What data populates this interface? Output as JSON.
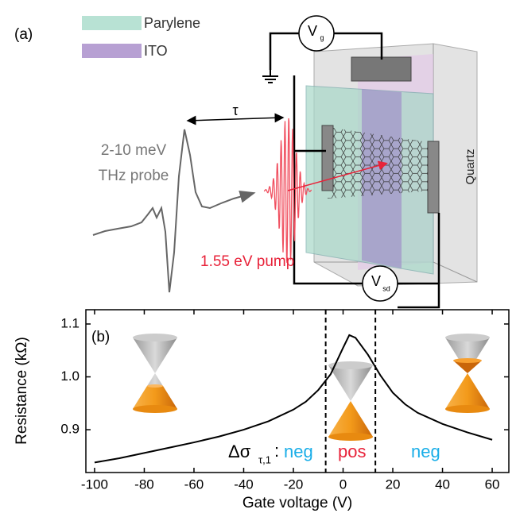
{
  "panel_a": {
    "label": "(a)",
    "legend": [
      "Parylene",
      "ITO"
    ],
    "legend_colors": [
      "#b8e2d4",
      "#b7a0d3"
    ],
    "gate_symbol": "V",
    "gate_sub": "g",
    "sd_symbol": "V",
    "sd_sub": "sd",
    "delay": "τ",
    "probe": [
      "2-10 meV",
      "THz probe"
    ],
    "pump": "1.55 eV pump",
    "substrate": "Quartz"
  },
  "chart_data": {
    "type": "line",
    "panel_label": "(b)",
    "x_label": "Gate voltage (V)",
    "y_label": "Resistance (kΩ)",
    "x": [
      -100,
      -90,
      -80,
      -70,
      -60,
      -50,
      -40,
      -30,
      -20,
      -15,
      -10,
      -5,
      0,
      2.5,
      5,
      10,
      15,
      20,
      25,
      30,
      40,
      50,
      60
    ],
    "series": [
      {
        "color": "#000000",
        "values": [
          0.838,
          0.846,
          0.856,
          0.866,
          0.876,
          0.887,
          0.9,
          0.916,
          0.938,
          0.953,
          0.975,
          1.005,
          1.055,
          1.079,
          1.074,
          1.042,
          1.003,
          0.97,
          0.948,
          0.932,
          0.911,
          0.895,
          0.881
        ]
      }
    ],
    "xlim": [
      -103.5,
      66.7
    ],
    "ylim": [
      0.819,
      1.127
    ],
    "xticks": [
      -100,
      -80,
      -60,
      -40,
      -20,
      0,
      20,
      40,
      60
    ],
    "yticks": [
      0.9,
      {
        "value": 1,
        "label": "1.0"
      },
      1.1
    ],
    "dividers": [
      -7,
      13
    ],
    "annotation": {
      "symbol": "Δσ",
      "sub": "τ,1",
      "colon": ":",
      "regions": [
        "neg",
        "pos",
        "neg"
      ],
      "region_colors": [
        "#1aaee8",
        "#e8233a",
        "#1aaee8"
      ]
    }
  }
}
